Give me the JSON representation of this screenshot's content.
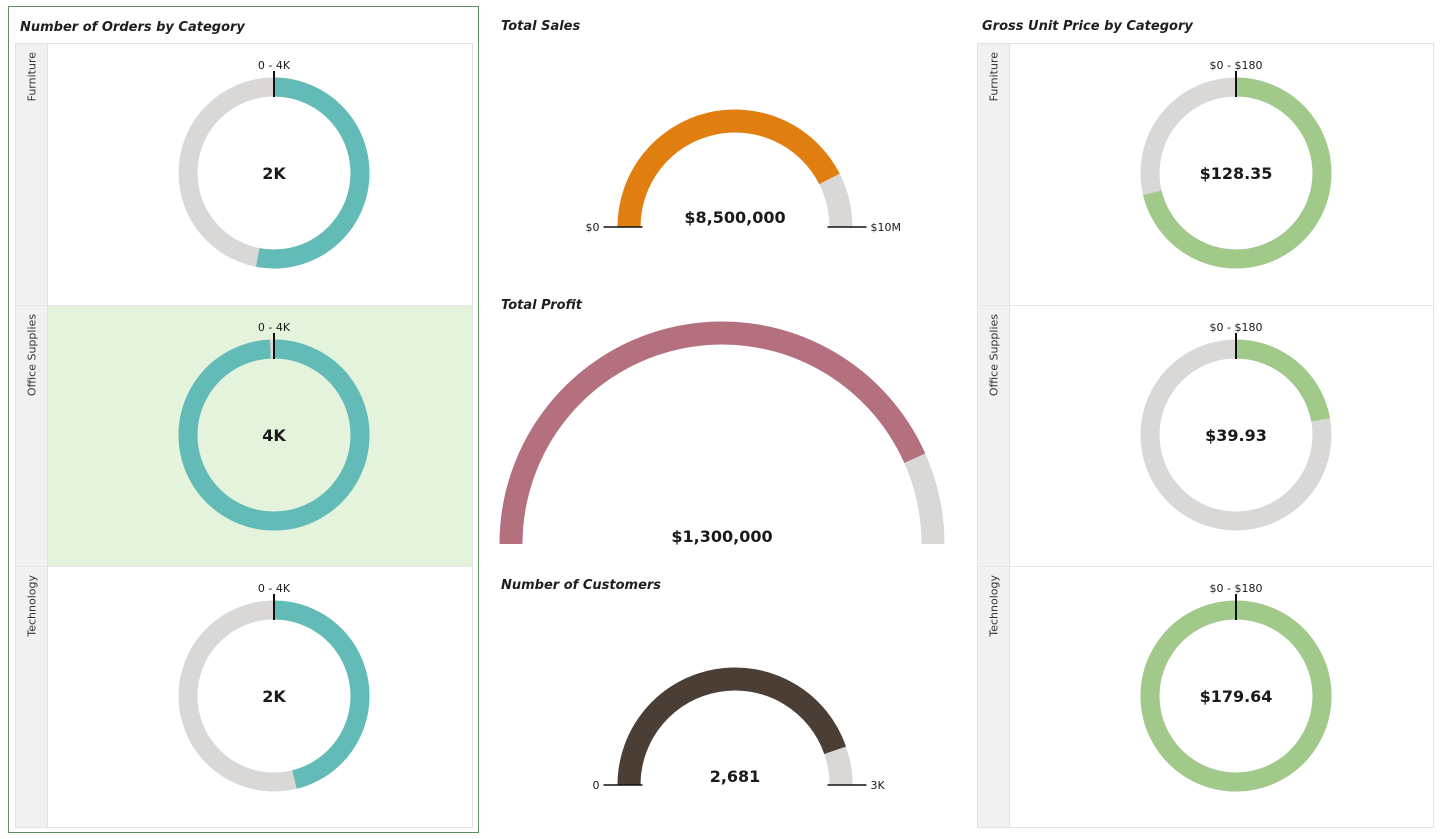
{
  "orders_panel": {
    "title": "Number of Orders by Category",
    "range_label": "0 - 4K",
    "selected_row": "Office Supplies"
  },
  "sales_panel": {
    "title": "Total Sales",
    "min_label": "$0",
    "max_label": "$10M",
    "value_label": "$8,500,000"
  },
  "profit_panel": {
    "title": "Total Profit",
    "value_label": "$1,300,000"
  },
  "customers_panel": {
    "title": "Number of Customers",
    "min_label": "0",
    "max_label": "3K",
    "value_label": "2,681"
  },
  "price_panel": {
    "title": "Gross Unit Price by Category",
    "range_label": "$0 - $180"
  },
  "colors": {
    "orders": "#62bbb6",
    "sales": "#e07f10",
    "profit": "#b4707e",
    "customers": "#4a3e35",
    "price": "#a0c98a",
    "track": "#d9d8d7",
    "selected_row_bg": "#e3f3dc"
  },
  "chart_data": [
    {
      "type": "ring_gauge",
      "title": "Number of Orders by Category",
      "range": [
        0,
        4000
      ],
      "categories": [
        "Furniture",
        "Office Supplies",
        "Technology"
      ],
      "values": [
        2121,
        3973,
        1847
      ],
      "value_labels": [
        "2K",
        "4K",
        "2K"
      ]
    },
    {
      "type": "semicircle_gauge",
      "title": "Total Sales",
      "range": [
        0,
        10000000
      ],
      "value": 8500000,
      "value_label": "$8,500,000"
    },
    {
      "type": "semicircle_gauge",
      "title": "Total Profit",
      "range": [
        0,
        1500000
      ],
      "value": 1300000,
      "value_label": "$1,300,000"
    },
    {
      "type": "semicircle_gauge",
      "title": "Number of Customers",
      "range": [
        0,
        3000
      ],
      "value": 2681,
      "value_label": "2,681"
    },
    {
      "type": "ring_gauge",
      "title": "Gross Unit Price by Category",
      "range": [
        0,
        180
      ],
      "categories": [
        "Furniture",
        "Office Supplies",
        "Technology"
      ],
      "values": [
        128.35,
        39.93,
        179.64
      ],
      "value_labels": [
        "$128.35",
        "$39.93",
        "$179.64"
      ]
    }
  ]
}
